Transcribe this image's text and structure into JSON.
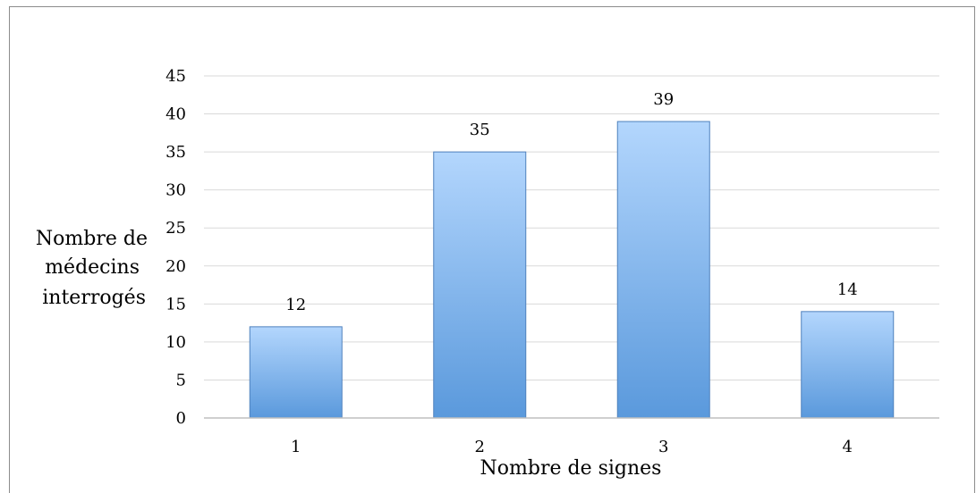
{
  "chart_data": {
    "type": "bar",
    "categories": [
      "1",
      "2",
      "3",
      "4"
    ],
    "values": [
      12,
      35,
      39,
      14
    ],
    "data_labels": [
      "12",
      "35",
      "39",
      "14"
    ],
    "title": "",
    "xlabel": "Nombre de signes",
    "ylabel_lines": [
      "Nombre de",
      "médecins",
      "interrogés"
    ],
    "ylim": [
      0,
      45
    ],
    "yticks": [
      0,
      5,
      10,
      15,
      20,
      25,
      30,
      35,
      40,
      45
    ],
    "grid": true,
    "legend": "none",
    "colors": {
      "bar_top": "#b3d6fd",
      "bar_bottom": "#5a99dc",
      "bar_edge": "#4f81bd",
      "grid": "#d9d9d9",
      "axis": "#bfbfbf"
    }
  }
}
